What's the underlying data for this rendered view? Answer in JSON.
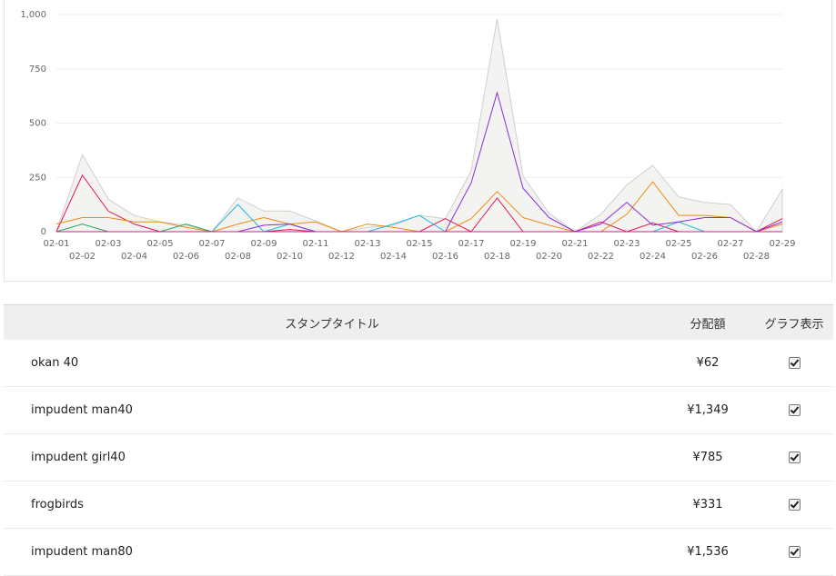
{
  "chart_data": {
    "type": "line",
    "y_ticks": [
      "0",
      "250",
      "500",
      "750",
      "1,000"
    ],
    "ylim": [
      0,
      1000
    ],
    "x_labels": [
      "02-01",
      "02-02",
      "02-03",
      "02-04",
      "02-05",
      "02-06",
      "02-07",
      "02-08",
      "02-09",
      "02-10",
      "02-11",
      "02-12",
      "02-13",
      "02-14",
      "02-15",
      "02-16",
      "02-17",
      "02-18",
      "02-19",
      "02-20",
      "02-21",
      "02-22",
      "02-23",
      "02-24",
      "02-25",
      "02-26",
      "02-27",
      "02-28",
      "02-29"
    ],
    "grid": true,
    "total_area": [
      0,
      355,
      150,
      75,
      45,
      30,
      0,
      155,
      95,
      95,
      50,
      0,
      20,
      30,
      75,
      60,
      280,
      980,
      255,
      85,
      0,
      80,
      215,
      305,
      160,
      135,
      125,
      0,
      195
    ],
    "series": [
      {
        "color": "#e8145a",
        "values": [
          0,
          260,
          95,
          35,
          0,
          0,
          0,
          0,
          0,
          10,
          0,
          0,
          0,
          0,
          0,
          60,
          0,
          155,
          0,
          0,
          0,
          45,
          0,
          40,
          0,
          0,
          0,
          0,
          60
        ]
      },
      {
        "color": "#f18a10",
        "values": [
          35,
          65,
          65,
          45,
          45,
          20,
          0,
          35,
          65,
          35,
          45,
          0,
          35,
          20,
          0,
          0,
          60,
          185,
          65,
          30,
          0,
          0,
          80,
          230,
          75,
          75,
          65,
          0,
          35
        ]
      },
      {
        "color": "#22aa55",
        "values": [
          0,
          35,
          0,
          0,
          0,
          35,
          0,
          0,
          0,
          0,
          0,
          0,
          0,
          0,
          0,
          0,
          0,
          0,
          0,
          0,
          0,
          0,
          0,
          0,
          0,
          0,
          0,
          0,
          0
        ]
      },
      {
        "color": "#22b8e0",
        "values": [
          0,
          0,
          0,
          0,
          0,
          0,
          0,
          125,
          0,
          35,
          0,
          0,
          0,
          35,
          75,
          0,
          0,
          0,
          0,
          0,
          0,
          0,
          0,
          0,
          45,
          0,
          0,
          0,
          0
        ]
      },
      {
        "color": "#8a2be2",
        "values": [
          0,
          0,
          0,
          0,
          0,
          0,
          0,
          0,
          30,
          35,
          0,
          0,
          0,
          0,
          0,
          0,
          225,
          640,
          200,
          65,
          0,
          35,
          135,
          30,
          45,
          65,
          65,
          0,
          45
        ]
      },
      {
        "color": "#cc2288",
        "values": [
          0,
          0,
          0,
          0,
          0,
          0,
          0,
          0,
          0,
          0,
          0,
          0,
          0,
          0,
          0,
          0,
          0,
          0,
          0,
          0,
          0,
          0,
          0,
          0,
          0,
          0,
          0,
          0,
          0
        ]
      }
    ],
    "colors": {
      "area_fill": "#f3f4f1",
      "area_stroke": "#cfd0cc",
      "grid": "#eeeeee"
    }
  },
  "table": {
    "headers": {
      "title": "スタンプタイトル",
      "amount": "分配額",
      "graph": "グラフ表示"
    },
    "rows": [
      {
        "title": "okan 40",
        "amount": "¥62",
        "checked": true
      },
      {
        "title": "impudent man40",
        "amount": "¥1,349",
        "checked": true
      },
      {
        "title": "impudent girl40",
        "amount": "¥785",
        "checked": true
      },
      {
        "title": "frogbirds",
        "amount": "¥331",
        "checked": true
      },
      {
        "title": "impudent man80",
        "amount": "¥1,536",
        "checked": true
      }
    ]
  }
}
